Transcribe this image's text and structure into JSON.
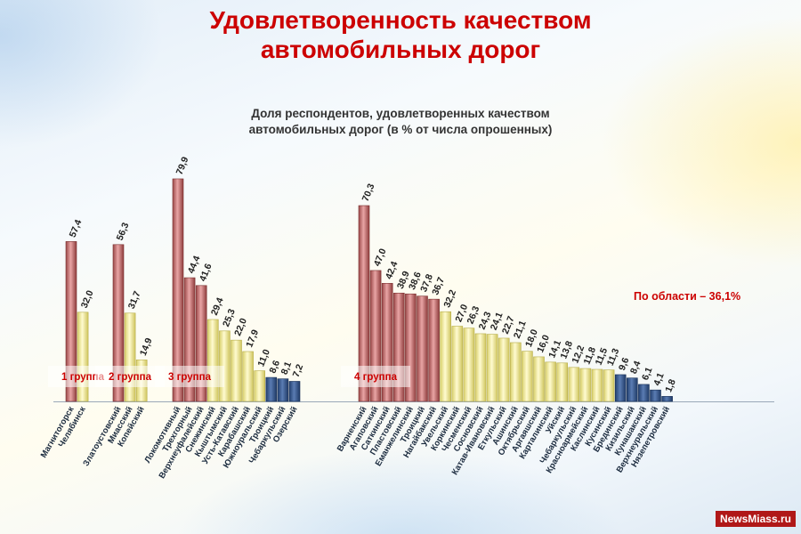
{
  "page": {
    "title_line1": "Удовлетворенность качеством",
    "title_line2": "автомобильных дорог",
    "watermark": "NewsMiass.ru"
  },
  "chart_data": {
    "type": "bar",
    "title": "Доля респондентов, удовлетворенных качеством",
    "subtitle": "автомобильных дорог (в % от числа опрошенных)",
    "xlabel": "",
    "ylabel": "",
    "ylim": [
      0,
      85
    ],
    "grid": false,
    "annotation": "По области – 36,1%",
    "colors": {
      "pink": "#c86e6e",
      "yellow": "#f2ec9c",
      "blue": "#2f4f86"
    },
    "groups": [
      {
        "label": "1 группа",
        "categories": [
          "Магнитогорск",
          "Челябинск"
        ],
        "values": [
          57.4,
          32.0
        ],
        "value_labels": [
          "57,4",
          "32,0"
        ],
        "colors": [
          "pink",
          "yellow"
        ]
      },
      {
        "label": "2 группа",
        "categories": [
          "Златоустовский",
          "Миасский",
          "Копейский"
        ],
        "values": [
          56.3,
          31.7,
          14.9
        ],
        "value_labels": [
          "56,3",
          "31,7",
          "14,9"
        ],
        "colors": [
          "pink",
          "yellow",
          "yellow"
        ]
      },
      {
        "label": "3 группа",
        "categories": [
          "Локомотивный",
          "Трехгорный",
          "Верхнеуфалейский",
          "Снежинский",
          "Кыштымский",
          "Усть-Катавский",
          "Карабашский",
          "Южноуральский",
          "Троицкий",
          "Чебаркульский",
          "Озерский"
        ],
        "values": [
          79.9,
          44.4,
          41.6,
          29.4,
          25.3,
          22.0,
          17.9,
          11.0,
          8.6,
          8.1,
          7.2
        ],
        "value_labels": [
          "79,9",
          "44,4",
          "41,6",
          "29,4",
          "25,3",
          "22,0",
          "17,9",
          "11,0",
          "8,6",
          "8,1",
          "7,2"
        ],
        "colors": [
          "pink",
          "pink",
          "pink",
          "yellow",
          "yellow",
          "yellow",
          "yellow",
          "yellow",
          "blue",
          "blue",
          "blue"
        ]
      },
      {
        "label": "4 группа",
        "categories": [
          "Варненский",
          "Агаповский",
          "Саткинский",
          "Пластовский",
          "Еманжелинский",
          "Троицкий",
          "Нагайбакский",
          "Увельский",
          "Коркинский",
          "Чесменский",
          "Сосновский",
          "Катав-Ивановский",
          "Еткульский",
          "Ашинский",
          "Октябрьский",
          "Аргаяшский",
          "Карталинский",
          "Уйский",
          "Чебаркульский",
          "Красноармейский",
          "Каслинский",
          "Кусинский",
          "Брединский",
          "Кизильский",
          "Кунашакский",
          "Верхнеуральский",
          "Нязепетровский"
        ],
        "values": [
          70.3,
          47.0,
          42.4,
          38.9,
          38.6,
          37.8,
          36.7,
          32.2,
          27.0,
          26.3,
          24.3,
          24.1,
          22.7,
          21.1,
          18.0,
          16.0,
          14.1,
          13.8,
          12.2,
          11.8,
          11.5,
          11.3,
          9.6,
          8.4,
          6.1,
          4.1,
          1.8
        ],
        "value_labels": [
          "70,3",
          "47,0",
          "42,4",
          "38,9",
          "38,6",
          "37,8",
          "36,7",
          "32,2",
          "27,0",
          "26,3",
          "24,3",
          "24,1",
          "22,7",
          "21,1",
          "18,0",
          "16,0",
          "14,1",
          "13,8",
          "12,2",
          "11,8",
          "11,5",
          "11,3",
          "9,6",
          "8,4",
          "6,1",
          "4,1",
          "1,8"
        ],
        "colors": [
          "pink",
          "pink",
          "pink",
          "pink",
          "pink",
          "pink",
          "pink",
          "yellow",
          "yellow",
          "yellow",
          "yellow",
          "yellow",
          "yellow",
          "yellow",
          "yellow",
          "yellow",
          "yellow",
          "yellow",
          "yellow",
          "yellow",
          "yellow",
          "yellow",
          "blue",
          "blue",
          "blue",
          "blue",
          "blue"
        ]
      }
    ]
  }
}
